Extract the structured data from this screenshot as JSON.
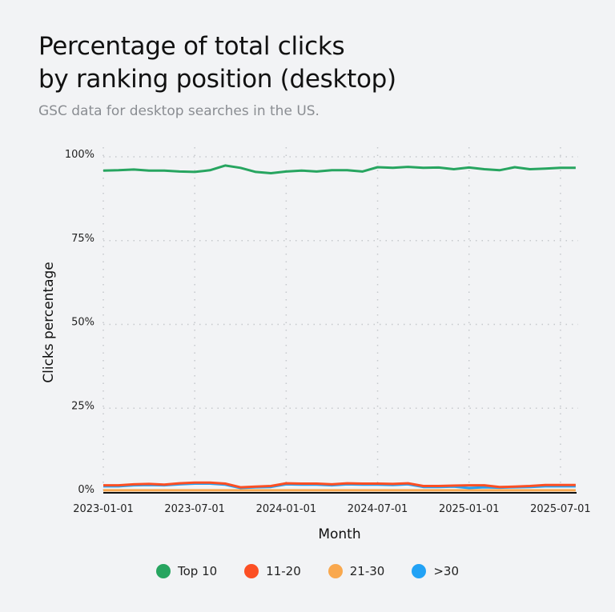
{
  "title_line1": "Percentage of total clicks",
  "title_line2": "by ranking position (desktop)",
  "subtitle": "GSC data for desktop searches in the US.",
  "chart_data": {
    "type": "line",
    "xlabel": "Month",
    "ylabel": "Clicks percentage",
    "ylim": [
      0,
      100
    ],
    "xlim": [
      "2023-01-01",
      "2025-08-01"
    ],
    "grid": true,
    "legend_position": "bottom",
    "x_ticks": [
      "2023-01-01",
      "2023-07-01",
      "2024-01-01",
      "2024-07-01",
      "2025-01-01",
      "2025-07-01"
    ],
    "y_ticks": [
      "0%",
      "25%",
      "50%",
      "75%",
      "100%"
    ],
    "x": [
      "2023-01",
      "2023-02",
      "2023-03",
      "2023-04",
      "2023-05",
      "2023-06",
      "2023-07",
      "2023-08",
      "2023-09",
      "2023-10",
      "2023-11",
      "2023-12",
      "2024-01",
      "2024-02",
      "2024-03",
      "2024-04",
      "2024-05",
      "2024-06",
      "2024-07",
      "2024-08",
      "2024-09",
      "2024-10",
      "2024-11",
      "2024-12",
      "2025-01",
      "2025-02",
      "2025-03",
      "2025-04",
      "2025-05",
      "2025-06",
      "2025-07",
      "2025-08"
    ],
    "series": [
      {
        "name": "Top 10",
        "color": "#27a560",
        "values": [
          95.9,
          96.0,
          96.2,
          95.9,
          95.9,
          95.6,
          95.5,
          96.0,
          97.4,
          96.7,
          95.5,
          95.1,
          95.6,
          95.9,
          95.6,
          96.0,
          96.0,
          95.6,
          96.9,
          96.7,
          97.0,
          96.7,
          96.8,
          96.3,
          96.8,
          96.3,
          96.0,
          96.9,
          96.3,
          96.5,
          96.7,
          96.7
        ]
      },
      {
        "name": "11-20",
        "color": "#fc4f24",
        "values": [
          2.0,
          2.0,
          2.3,
          2.4,
          2.2,
          2.6,
          2.8,
          2.8,
          2.5,
          1.4,
          1.6,
          1.8,
          2.6,
          2.5,
          2.5,
          2.3,
          2.6,
          2.5,
          2.5,
          2.4,
          2.6,
          1.8,
          1.8,
          1.9,
          2.0,
          2.0,
          1.5,
          1.6,
          1.8,
          2.1,
          2.1,
          2.1
        ]
      },
      {
        "name": "21-30",
        "color": "#f9a84e",
        "values": [
          0.5,
          0.5,
          0.5,
          0.5,
          0.5,
          0.5,
          0.5,
          0.5,
          0.5,
          0.5,
          0.5,
          0.5,
          0.5,
          0.5,
          0.5,
          0.5,
          0.5,
          0.5,
          0.5,
          0.5,
          0.5,
          0.5,
          0.5,
          0.5,
          0.5,
          0.5,
          0.5,
          0.5,
          0.5,
          0.5,
          0.5,
          0.5
        ]
      },
      {
        "name": ">30",
        "color": "#22a2f5",
        "values": [
          1.7,
          1.7,
          2.0,
          2.1,
          2.0,
          2.3,
          2.5,
          2.5,
          2.2,
          1.2,
          1.4,
          1.5,
          2.3,
          2.2,
          2.2,
          2.0,
          2.3,
          2.2,
          2.2,
          2.1,
          2.3,
          1.5,
          1.5,
          1.6,
          1.2,
          1.4,
          1.3,
          1.4,
          1.5,
          1.7,
          1.7,
          1.7
        ]
      }
    ]
  }
}
